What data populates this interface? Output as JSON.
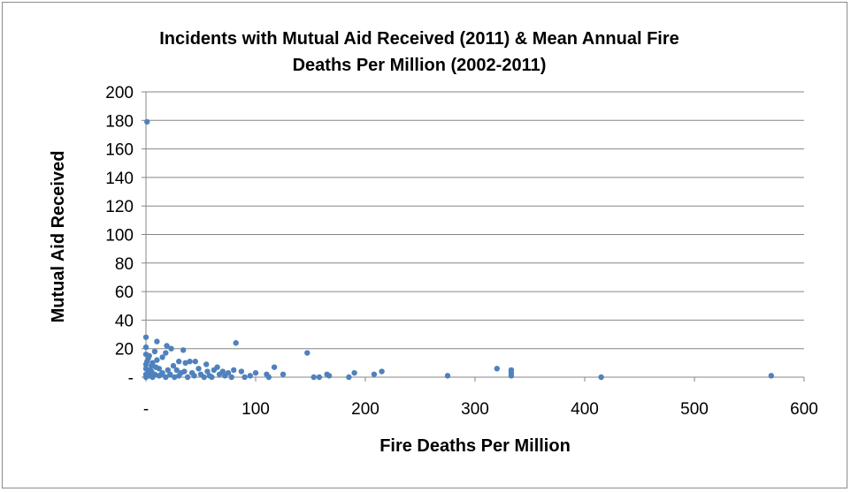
{
  "chart_data": {
    "type": "scatter",
    "title": "Incidents with Mutual Aid Received (2011) & Mean Annual Fire Deaths Per Million (2002-2011)",
    "title_lines": [
      "Incidents with Mutual Aid Received (2011) & Mean Annual Fire",
      "Deaths Per Million (2002-2011)"
    ],
    "xlabel": "Fire Deaths Per Million",
    "ylabel": "Mutual Aid Received",
    "xlim": [
      0,
      600
    ],
    "ylim": [
      0,
      200
    ],
    "x_ticks": [
      0,
      100,
      200,
      300,
      400,
      500,
      600
    ],
    "x_tick_labels": [
      "-",
      "100",
      "200",
      "300",
      "400",
      "500",
      "600"
    ],
    "y_ticks": [
      0,
      20,
      40,
      60,
      80,
      100,
      120,
      140,
      160,
      180,
      200
    ],
    "y_tick_labels": [
      "-",
      "20",
      "40",
      "60",
      "80",
      "100",
      "120",
      "140",
      "160",
      "180",
      "200"
    ],
    "grid": "horizontal",
    "legend": "none",
    "marker_color": "#4f81bd",
    "series": [
      {
        "points": [
          [
            1,
            179
          ],
          [
            0,
            28
          ],
          [
            10,
            25
          ],
          [
            82,
            24
          ],
          [
            19,
            22
          ],
          [
            0,
            21
          ],
          [
            23,
            20
          ],
          [
            34,
            19
          ],
          [
            8,
            18
          ],
          [
            147,
            17
          ],
          [
            18,
            17
          ],
          [
            0,
            16
          ],
          [
            15,
            14
          ],
          [
            2,
            13
          ],
          [
            10,
            12
          ],
          [
            40,
            11
          ],
          [
            30,
            11
          ],
          [
            45,
            11
          ],
          [
            36,
            10
          ],
          [
            6,
            10
          ],
          [
            55,
            9
          ],
          [
            0,
            9
          ],
          [
            5,
            8
          ],
          [
            25,
            8
          ],
          [
            65,
            7
          ],
          [
            117,
            7
          ],
          [
            320,
            6
          ],
          [
            0,
            6
          ],
          [
            12,
            6
          ],
          [
            48,
            6
          ],
          [
            333,
            5
          ],
          [
            4,
            5
          ],
          [
            62,
            5
          ],
          [
            80,
            5
          ],
          [
            20,
            5
          ],
          [
            28,
            5
          ],
          [
            70,
            4
          ],
          [
            87,
            4
          ],
          [
            215,
            4
          ],
          [
            5,
            4
          ],
          [
            35,
            4
          ],
          [
            56,
            4
          ],
          [
            2,
            3
          ],
          [
            15,
            3
          ],
          [
            42,
            3
          ],
          [
            75,
            3
          ],
          [
            100,
            3
          ],
          [
            190,
            3
          ],
          [
            333,
            3
          ],
          [
            0,
            2
          ],
          [
            8,
            2
          ],
          [
            22,
            2
          ],
          [
            50,
            2
          ],
          [
            67,
            2
          ],
          [
            110,
            2
          ],
          [
            125,
            2
          ],
          [
            165,
            2
          ],
          [
            208,
            2
          ],
          [
            3,
            1
          ],
          [
            12,
            1
          ],
          [
            30,
            1
          ],
          [
            58,
            1
          ],
          [
            95,
            1
          ],
          [
            167,
            1
          ],
          [
            275,
            1
          ],
          [
            333,
            1
          ],
          [
            570,
            1
          ],
          [
            0,
            0
          ],
          [
            6,
            0
          ],
          [
            18,
            0
          ],
          [
            38,
            0
          ],
          [
            53,
            0
          ],
          [
            78,
            0
          ],
          [
            90,
            0
          ],
          [
            112,
            0
          ],
          [
            153,
            0
          ],
          [
            158,
            0
          ],
          [
            185,
            0
          ],
          [
            415,
            0
          ],
          [
            26,
            0
          ],
          [
            44,
            1
          ],
          [
            60,
            0
          ],
          [
            72,
            1
          ],
          [
            14,
            2
          ],
          [
            32,
            3
          ],
          [
            9,
            7
          ],
          [
            1,
            11
          ],
          [
            3,
            15
          ]
        ]
      }
    ]
  }
}
